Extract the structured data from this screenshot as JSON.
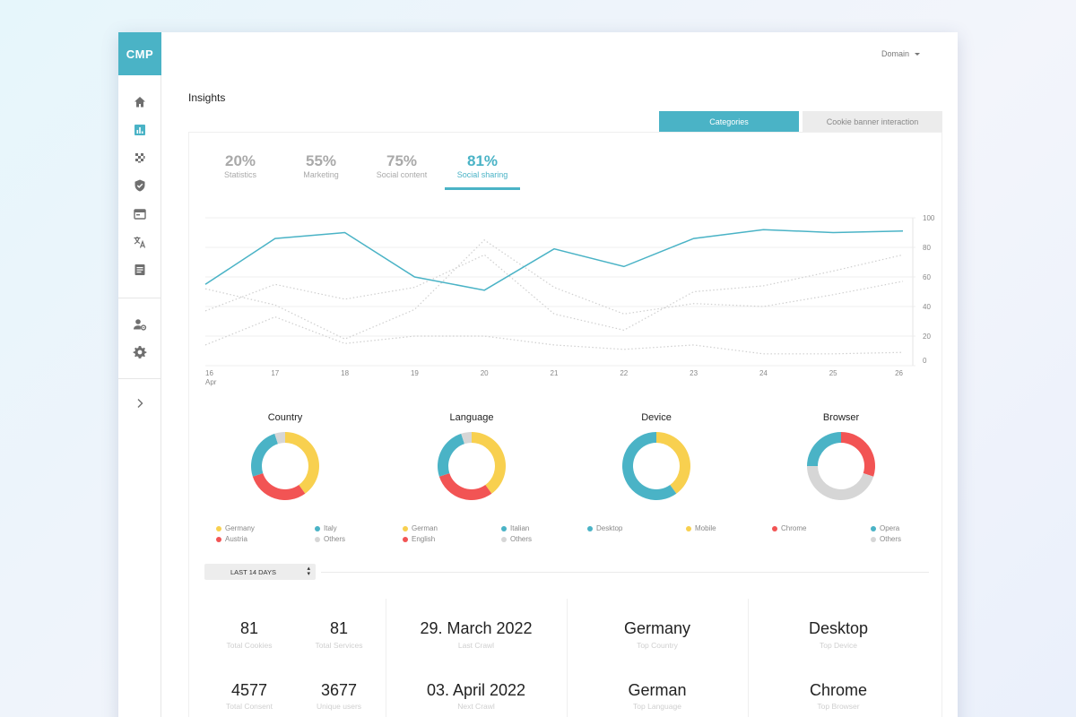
{
  "app": {
    "logo": "CMP"
  },
  "sidebar": {
    "items": [
      {
        "name": "home",
        "icon": "home-icon"
      },
      {
        "name": "insights",
        "icon": "bar-chart-icon",
        "active": true
      },
      {
        "name": "scan",
        "icon": "checker-icon"
      },
      {
        "name": "security",
        "icon": "shield-icon"
      },
      {
        "name": "banner",
        "icon": "browser-window-icon"
      },
      {
        "name": "translation",
        "icon": "translate-icon"
      },
      {
        "name": "documents",
        "icon": "document-icon"
      },
      {
        "name": "users",
        "icon": "user-settings-icon"
      },
      {
        "name": "settings",
        "icon": "gear-icon"
      },
      {
        "name": "expand",
        "icon": "chevron-right-icon"
      }
    ]
  },
  "header": {
    "domain_label": "Domain"
  },
  "page": {
    "title": "Insights"
  },
  "toggles": {
    "categories": "Categories",
    "cookie_banner": "Cookie banner interaction"
  },
  "stat_tabs": [
    {
      "value": "20%",
      "label": "Statistics"
    },
    {
      "value": "55%",
      "label": "Marketing"
    },
    {
      "value": "75%",
      "label": "Social content"
    },
    {
      "value": "81%",
      "label": "Social sharing"
    }
  ],
  "colors": {
    "accent": "#4ab3c6",
    "red": "#f25454",
    "yellow": "#f8d04f",
    "teal": "#4ab3c6",
    "grey": "#d6d6d6"
  },
  "chart_data": {
    "type": "line",
    "x": [
      "16",
      "17",
      "18",
      "19",
      "20",
      "21",
      "22",
      "23",
      "24",
      "25",
      "26"
    ],
    "x_sublabel_first": "Apr",
    "ylim": [
      0,
      100
    ],
    "y_ticks": [
      "100",
      "80",
      "60",
      "40",
      "20",
      "0"
    ],
    "series": [
      {
        "style": "solid",
        "values": [
          55,
          86,
          90,
          60,
          51,
          79,
          67,
          86,
          92,
          90,
          91
        ]
      },
      {
        "style": "dotted",
        "values": [
          52,
          41,
          18,
          38,
          85,
          53,
          35,
          42,
          40,
          48,
          57
        ]
      },
      {
        "style": "dotted",
        "values": [
          37,
          55,
          45,
          53,
          75,
          35,
          24,
          50,
          54,
          64,
          75
        ]
      },
      {
        "style": "dotted",
        "values": [
          14,
          33,
          15,
          20,
          20,
          14,
          11,
          14,
          8,
          8,
          9
        ]
      }
    ]
  },
  "donuts": [
    {
      "title": "Country",
      "segments": [
        {
          "label": "Germany",
          "value": 40,
          "color": "#f8d04f"
        },
        {
          "label": "Austria",
          "value": 30,
          "color": "#f25454"
        },
        {
          "label": "Italy",
          "value": 25,
          "color": "#4ab3c6"
        },
        {
          "label": "Others",
          "value": 5,
          "color": "#d6d6d6"
        }
      ],
      "legend": [
        "Germany",
        "Italy",
        "Austria",
        "Others"
      ]
    },
    {
      "title": "Language",
      "segments": [
        {
          "label": "German",
          "value": 40,
          "color": "#f8d04f"
        },
        {
          "label": "English",
          "value": 30,
          "color": "#f25454"
        },
        {
          "label": "Italian",
          "value": 25,
          "color": "#4ab3c6"
        },
        {
          "label": "Others",
          "value": 5,
          "color": "#d6d6d6"
        }
      ],
      "legend": [
        "German",
        "Italian",
        "English",
        "Others"
      ]
    },
    {
      "title": "Device",
      "segments": [
        {
          "label": "Mobile",
          "value": 40,
          "color": "#f8d04f"
        },
        {
          "label": "Desktop",
          "value": 60,
          "color": "#4ab3c6"
        }
      ],
      "legend": [
        "Desktop",
        "Mobile"
      ]
    },
    {
      "title": "Browser",
      "segments": [
        {
          "label": "Chrome",
          "value": 30,
          "color": "#f25454"
        },
        {
          "label": "Others",
          "value": 45,
          "color": "#d6d6d6"
        },
        {
          "label": "Opera",
          "value": 25,
          "color": "#4ab3c6"
        }
      ],
      "legend": [
        "Chrome",
        "Opera",
        "Others"
      ]
    }
  ],
  "range": {
    "label": "LAST 14 DAYS"
  },
  "kpis": {
    "total_cookies": {
      "value": "81",
      "label": "Total Cookies"
    },
    "total_services": {
      "value": "81",
      "label": "Total Services"
    },
    "total_consent": {
      "value": "4577",
      "label": "Total Consent"
    },
    "unique_users": {
      "value": "3677",
      "label": "Unique users"
    },
    "last_crawl": {
      "value": "29. March 2022",
      "label": "Last Crawl"
    },
    "next_crawl": {
      "value": "03. April 2022",
      "label": "Next Crawl"
    },
    "top_country": {
      "value": "Germany",
      "label": "Top Country"
    },
    "top_language": {
      "value": "German",
      "label": "Top Language"
    },
    "top_device": {
      "value": "Desktop",
      "label": "Top Device"
    },
    "top_browser": {
      "value": "Chrome",
      "label": "Top Browser"
    }
  }
}
